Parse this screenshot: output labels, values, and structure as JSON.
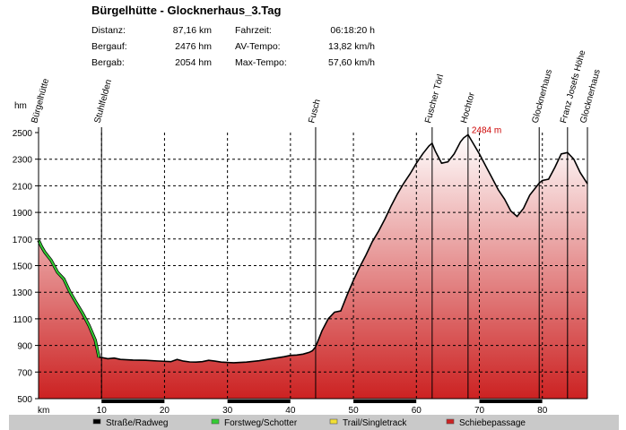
{
  "header": {
    "title": "Bürgelhütte - Glocknerhaus_3.Tag",
    "stats": [
      {
        "label": "Distanz:",
        "value": "87,16 km"
      },
      {
        "label": "Fahrzeit:",
        "value": "06:18:20 h"
      },
      {
        "label": "Bergauf:",
        "value": "2476 hm"
      },
      {
        "label": "AV-Tempo:",
        "value": "13,82 km/h"
      },
      {
        "label": "Bergab:",
        "value": "2054 hm"
      },
      {
        "label": "Max-Tempo:",
        "value": "57,60 km/h"
      }
    ]
  },
  "legend": [
    {
      "label": "Straße/Radweg",
      "color": "#000000"
    },
    {
      "label": "Forstweg/Schotter",
      "color": "#33cc33"
    },
    {
      "label": "Trail/Singletrack",
      "color": "#f2e033"
    },
    {
      "label": "Schiebepassage",
      "color": "#cc2222"
    }
  ],
  "chart_data": {
    "type": "area",
    "ylabel": "hm",
    "xlabel": "km",
    "xlim": [
      0,
      87.16
    ],
    "ylim": [
      500,
      2500
    ],
    "yticks": [
      500,
      700,
      900,
      1100,
      1300,
      1500,
      1700,
      1900,
      2100,
      2300,
      2500
    ],
    "xticks": [
      10,
      20,
      30,
      40,
      50,
      60,
      70,
      80
    ],
    "grid": true,
    "fill_gradient": {
      "top": "#ffffff",
      "bottom": "#cc2222"
    },
    "line_color": "#000000",
    "peak_label": {
      "x": 68.2,
      "y": 2484,
      "text": "2484 m",
      "color": "#cc0000"
    },
    "waypoints": [
      {
        "name": "Bürgelhütte",
        "x": 0
      },
      {
        "name": "Stuhlfelden",
        "x": 10
      },
      {
        "name": "Fusch",
        "x": 44
      },
      {
        "name": "Fuscher Törl",
        "x": 62.5
      },
      {
        "name": "Hochtor",
        "x": 68.2
      },
      {
        "name": "Glocknerhaus",
        "x": 79.5
      },
      {
        "name": "Franz Josefs Höhe",
        "x": 84
      },
      {
        "name": "Glocknerhaus",
        "x": 87.16
      }
    ],
    "surface_segments": [
      {
        "type": "Forstweg/Schotter",
        "from": 0,
        "to": 9.6
      },
      {
        "type": "Straße/Radweg",
        "from": 9.6,
        "to": 87.16
      }
    ],
    "x_bar_segments": [
      {
        "from": 0,
        "to": 10,
        "color": "#ffffff"
      },
      {
        "from": 10,
        "to": 20,
        "color": "#000000"
      },
      {
        "from": 20,
        "to": 30,
        "color": "#ffffff"
      },
      {
        "from": 30,
        "to": 40,
        "color": "#000000"
      },
      {
        "from": 40,
        "to": 50,
        "color": "#ffffff"
      },
      {
        "from": 50,
        "to": 60,
        "color": "#000000"
      },
      {
        "from": 60,
        "to": 70,
        "color": "#ffffff"
      },
      {
        "from": 70,
        "to": 80,
        "color": "#000000"
      },
      {
        "from": 80,
        "to": 87.16,
        "color": "#ffffff"
      }
    ],
    "x": [
      0,
      0.5,
      1,
      2,
      3,
      4,
      5,
      6,
      7,
      8,
      9,
      9.6,
      10,
      11,
      12,
      13,
      15,
      17,
      19,
      21,
      22,
      23,
      24,
      25,
      26,
      27,
      28,
      29,
      30,
      31,
      33,
      35,
      37,
      39,
      40,
      41,
      42,
      43,
      43.5,
      44,
      44.5,
      45,
      46,
      47,
      48,
      49,
      50,
      51,
      52,
      53,
      54,
      55,
      56,
      57,
      58,
      59,
      60,
      61,
      62,
      62.5,
      63,
      64,
      65,
      66,
      67,
      67.5,
      68.2,
      69,
      70,
      71,
      72,
      73,
      74,
      75,
      76,
      77,
      78,
      79,
      79.5,
      80,
      81,
      82,
      83,
      84,
      85,
      86,
      87.16
    ],
    "y": [
      1690,
      1640,
      1600,
      1540,
      1450,
      1400,
      1300,
      1220,
      1140,
      1050,
      940,
      810,
      810,
      800,
      805,
      795,
      790,
      788,
      783,
      778,
      795,
      782,
      776,
      775,
      778,
      788,
      782,
      775,
      772,
      770,
      775,
      785,
      800,
      815,
      825,
      828,
      835,
      848,
      860,
      890,
      950,
      1010,
      1100,
      1150,
      1160,
      1280,
      1390,
      1490,
      1580,
      1680,
      1760,
      1850,
      1950,
      2040,
      2120,
      2190,
      2270,
      2340,
      2400,
      2420,
      2360,
      2270,
      2280,
      2340,
      2430,
      2460,
      2484,
      2420,
      2340,
      2250,
      2160,
      2070,
      2000,
      1910,
      1870,
      1930,
      2030,
      2090,
      2120,
      2140,
      2150,
      2240,
      2340,
      2350,
      2300,
      2200,
      2115
    ]
  }
}
